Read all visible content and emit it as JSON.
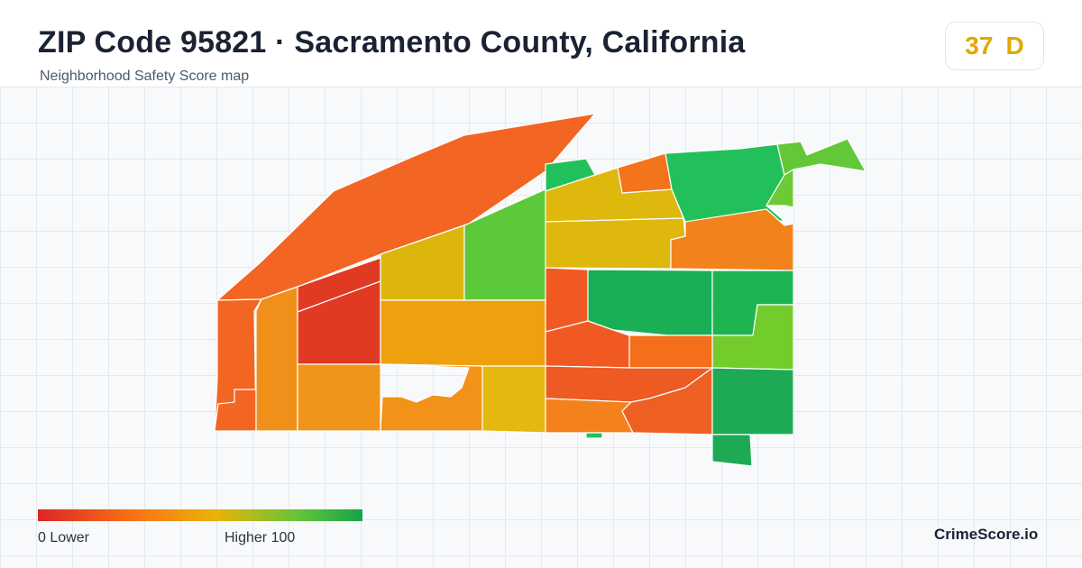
{
  "header": {
    "title": "ZIP Code 95821 · Sacramento County, California",
    "subtitle": "Neighborhood Safety Score map"
  },
  "score": {
    "value": "37",
    "grade": "D",
    "color": "#e0a800"
  },
  "map": {
    "regions": [
      {
        "id": "north-strip",
        "color": "#f26522"
      },
      {
        "id": "west-edge",
        "color": "#f26522"
      },
      {
        "id": "west-corner",
        "color": "#f26522"
      },
      {
        "id": "west-col-2",
        "color": "#f0901a"
      },
      {
        "id": "center-red-top",
        "color": "#e03a22"
      },
      {
        "id": "center-red",
        "color": "#e03a22"
      },
      {
        "id": "center-yellow",
        "color": "#dcb60d"
      },
      {
        "id": "center-green",
        "color": "#5cc93a"
      },
      {
        "id": "center-orange",
        "color": "#eea00e"
      },
      {
        "id": "south-col-1",
        "color": "#f0941a"
      },
      {
        "id": "south-col-2",
        "color": "#f29218"
      },
      {
        "id": "south-yellow",
        "color": "#e6b80f"
      },
      {
        "id": "ne-green-small",
        "color": "#22c05a"
      },
      {
        "id": "ne-yellow-1",
        "color": "#deb80d"
      },
      {
        "id": "ne-orange-small",
        "color": "#f4741c"
      },
      {
        "id": "ne-yellow-2",
        "color": "#deb80d"
      },
      {
        "id": "ne-green-large",
        "color": "#22c05a"
      },
      {
        "id": "ne-lime-small",
        "color": "#62c838"
      },
      {
        "id": "ne-lime",
        "color": "#6ccb34"
      },
      {
        "id": "ne-green-2",
        "color": "#52c73c"
      },
      {
        "id": "east-orange",
        "color": "#f2821c"
      },
      {
        "id": "mid-orange-small",
        "color": "#f05a22"
      },
      {
        "id": "mid-green",
        "color": "#1aae55"
      },
      {
        "id": "mid-green-2",
        "color": "#1eb452"
      },
      {
        "id": "east-lime",
        "color": "#74cc2c"
      },
      {
        "id": "mid-orange-row",
        "color": "#f05a22"
      },
      {
        "id": "mid-orange-row-2",
        "color": "#f56e1c"
      },
      {
        "id": "south-orange-1",
        "color": "#ed5a22"
      },
      {
        "id": "south-orange-2",
        "color": "#f4821c"
      },
      {
        "id": "south-orange-3",
        "color": "#ee6022"
      },
      {
        "id": "se-green",
        "color": "#1eaa55"
      },
      {
        "id": "se-green-2",
        "color": "#1eaa55"
      },
      {
        "id": "tiny-green",
        "color": "#22c05a"
      }
    ]
  },
  "legend": {
    "low_label": "0  Lower",
    "high_label": "Higher  100"
  },
  "footer": {
    "brand": "CrimeScore.io"
  }
}
